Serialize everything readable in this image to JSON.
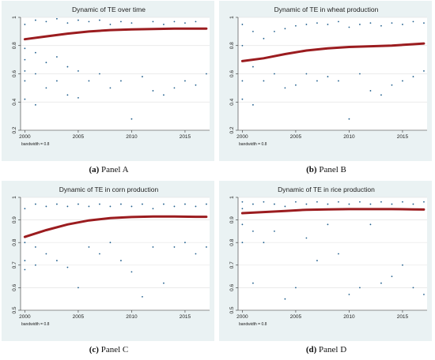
{
  "chart_data": [
    {
      "type": "scatter",
      "title": "Dynamic of TE over time",
      "xlabel": "",
      "ylabel": "",
      "xlim": [
        1999.6,
        2017.3
      ],
      "ylim": [
        0.2,
        1.0
      ],
      "x_ticks": [
        2000,
        2005,
        2010,
        2015
      ],
      "y_ticks": [
        0.2,
        0.4,
        0.6,
        0.8,
        1
      ],
      "y_tick_labels": [
        "0.2",
        "0.4",
        "0.6",
        "0.8",
        "1"
      ],
      "grid": true,
      "note": "bandwidth = 0.8",
      "series": [
        {
          "type": "line",
          "x": [
            2000,
            2002,
            2004,
            2006,
            2008,
            2010,
            2012,
            2014,
            2016,
            2017
          ],
          "y": [
            0.845,
            0.865,
            0.885,
            0.9,
            0.91,
            0.915,
            0.918,
            0.92,
            0.92,
            0.92
          ]
        },
        {
          "type": "points",
          "x": [
            2000,
            2000,
            2000,
            2000,
            2000,
            2000,
            2001,
            2001,
            2001,
            2001,
            2002,
            2002,
            2002,
            2003,
            2003,
            2003,
            2004,
            2004,
            2004,
            2005,
            2005,
            2005,
            2006,
            2006,
            2007,
            2007,
            2008,
            2008,
            2009,
            2009,
            2010,
            2010,
            2011,
            2012,
            2012,
            2013,
            2013,
            2014,
            2014,
            2015,
            2015,
            2016,
            2016,
            2017
          ],
          "y": [
            0.42,
            0.55,
            0.62,
            0.7,
            0.78,
            0.95,
            0.38,
            0.6,
            0.75,
            0.98,
            0.5,
            0.68,
            0.97,
            0.55,
            0.72,
            0.99,
            0.45,
            0.65,
            0.96,
            0.43,
            0.62,
            0.98,
            0.55,
            0.97,
            0.6,
            0.98,
            0.5,
            0.95,
            0.55,
            0.97,
            0.28,
            0.96,
            0.58,
            0.48,
            0.97,
            0.45,
            0.95,
            0.5,
            0.97,
            0.55,
            0.96,
            0.52,
            0.97,
            0.6
          ]
        }
      ]
    },
    {
      "type": "scatter",
      "title": "Dynamic of TE in wheat production",
      "xlabel": "",
      "ylabel": "",
      "xlim": [
        1999.6,
        2017.3
      ],
      "ylim": [
        0.2,
        1.0
      ],
      "x_ticks": [
        2000,
        2005,
        2010,
        2015
      ],
      "y_ticks": [
        0.2,
        0.4,
        0.6,
        0.8,
        1
      ],
      "y_tick_labels": [
        "0.2",
        "0.4",
        "0.6",
        "0.8",
        "1"
      ],
      "grid": true,
      "note": "bandwidth = 0.8",
      "series": [
        {
          "type": "line",
          "x": [
            2000,
            2002,
            2004,
            2006,
            2008,
            2010,
            2012,
            2014,
            2016,
            2017
          ],
          "y": [
            0.69,
            0.71,
            0.74,
            0.765,
            0.78,
            0.79,
            0.795,
            0.8,
            0.81,
            0.815
          ]
        },
        {
          "type": "points",
          "x": [
            2000,
            2000,
            2000,
            2000,
            2001,
            2001,
            2001,
            2002,
            2002,
            2003,
            2003,
            2004,
            2004,
            2005,
            2005,
            2006,
            2006,
            2007,
            2007,
            2008,
            2008,
            2009,
            2009,
            2010,
            2010,
            2011,
            2011,
            2012,
            2012,
            2013,
            2013,
            2014,
            2014,
            2015,
            2015,
            2016,
            2016,
            2017,
            2017
          ],
          "y": [
            0.42,
            0.55,
            0.8,
            0.95,
            0.38,
            0.65,
            0.9,
            0.55,
            0.85,
            0.6,
            0.9,
            0.5,
            0.92,
            0.52,
            0.94,
            0.6,
            0.95,
            0.55,
            0.96,
            0.58,
            0.95,
            0.55,
            0.97,
            0.28,
            0.93,
            0.6,
            0.95,
            0.48,
            0.96,
            0.45,
            0.94,
            0.52,
            0.96,
            0.55,
            0.95,
            0.58,
            0.97,
            0.62,
            0.96
          ]
        }
      ]
    },
    {
      "type": "scatter",
      "title": "Dynamic of TE in corn production",
      "xlabel": "",
      "ylabel": "",
      "xlim": [
        1999.6,
        2017.3
      ],
      "ylim": [
        0.5,
        1.0
      ],
      "x_ticks": [
        2000,
        2005,
        2010,
        2015
      ],
      "y_ticks": [
        0.5,
        0.6,
        0.7,
        0.8,
        0.9,
        1
      ],
      "y_tick_labels": [
        "0.5",
        "0.6",
        "0.7",
        "0.8",
        "0.9",
        "1"
      ],
      "grid": true,
      "note": "bandwidth = 0.8",
      "series": [
        {
          "type": "line",
          "x": [
            2000,
            2002,
            2004,
            2006,
            2008,
            2010,
            2012,
            2014,
            2016,
            2017
          ],
          "y": [
            0.825,
            0.855,
            0.88,
            0.898,
            0.908,
            0.913,
            0.915,
            0.915,
            0.914,
            0.914
          ]
        },
        {
          "type": "points",
          "x": [
            2000,
            2000,
            2000,
            2000,
            2001,
            2001,
            2001,
            2002,
            2002,
            2003,
            2003,
            2004,
            2004,
            2005,
            2005,
            2006,
            2006,
            2007,
            2007,
            2008,
            2008,
            2009,
            2009,
            2010,
            2010,
            2011,
            2011,
            2012,
            2012,
            2013,
            2013,
            2014,
            2014,
            2015,
            2015,
            2016,
            2016,
            2017,
            2017
          ],
          "y": [
            0.68,
            0.72,
            0.8,
            0.95,
            0.7,
            0.78,
            0.97,
            0.75,
            0.96,
            0.72,
            0.97,
            0.69,
            0.96,
            0.6,
            0.97,
            0.78,
            0.96,
            0.75,
            0.97,
            0.8,
            0.96,
            0.72,
            0.97,
            0.67,
            0.96,
            0.56,
            0.97,
            0.78,
            0.95,
            0.62,
            0.97,
            0.78,
            0.96,
            0.8,
            0.97,
            0.75,
            0.96,
            0.78,
            0.97
          ]
        }
      ]
    },
    {
      "type": "scatter",
      "title": "Dynamic of TE in rice production",
      "xlabel": "",
      "ylabel": "",
      "xlim": [
        1999.6,
        2017.3
      ],
      "ylim": [
        0.5,
        1.0
      ],
      "x_ticks": [
        2000,
        2005,
        2010,
        2015
      ],
      "y_ticks": [
        0.5,
        0.6,
        0.7,
        0.8,
        0.9,
        1
      ],
      "y_tick_labels": [
        "0.5",
        "0.6",
        "0.7",
        "0.8",
        "0.9",
        "1"
      ],
      "grid": true,
      "note": "bandwidth = 0.8",
      "series": [
        {
          "type": "line",
          "x": [
            2000,
            2002,
            2004,
            2006,
            2008,
            2010,
            2012,
            2014,
            2016,
            2017
          ],
          "y": [
            0.93,
            0.935,
            0.94,
            0.945,
            0.947,
            0.948,
            0.948,
            0.948,
            0.947,
            0.946
          ]
        },
        {
          "type": "points",
          "x": [
            2000,
            2000,
            2000,
            2000,
            2001,
            2001,
            2001,
            2002,
            2002,
            2003,
            2003,
            2004,
            2004,
            2005,
            2005,
            2006,
            2006,
            2007,
            2007,
            2008,
            2008,
            2009,
            2009,
            2010,
            2010,
            2011,
            2011,
            2012,
            2012,
            2013,
            2013,
            2014,
            2014,
            2015,
            2015,
            2016,
            2016,
            2017,
            2017
          ],
          "y": [
            0.8,
            0.88,
            0.95,
            0.98,
            0.62,
            0.85,
            0.97,
            0.8,
            0.98,
            0.85,
            0.97,
            0.55,
            0.96,
            0.6,
            0.98,
            0.82,
            0.97,
            0.72,
            0.98,
            0.88,
            0.97,
            0.75,
            0.98,
            0.57,
            0.97,
            0.6,
            0.98,
            0.88,
            0.97,
            0.62,
            0.98,
            0.65,
            0.97,
            0.7,
            0.98,
            0.6,
            0.97,
            0.57,
            0.98
          ]
        }
      ]
    }
  ],
  "captions": [
    {
      "label": "(a)",
      "text": " Panel A"
    },
    {
      "label": "(b)",
      "text": " Panel B"
    },
    {
      "label": "(c)",
      "text": " Panel C"
    },
    {
      "label": "(d)",
      "text": " Panel D"
    }
  ],
  "colors": {
    "panel_bg": "#eaf2f3",
    "plot_bg": "#ffffff",
    "grid": "#e4e4e4",
    "points": "#1f5e8c",
    "fit_line": "#9b1c1f",
    "title": "#1f2f3f"
  }
}
